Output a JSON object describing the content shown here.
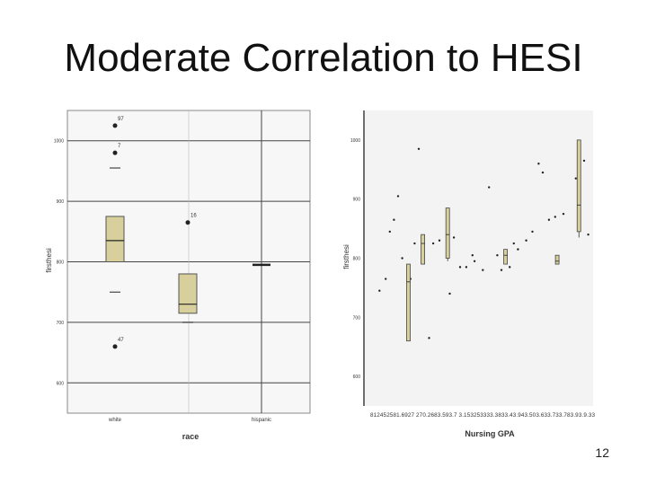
{
  "slide": {
    "title": "Moderate Correlation to HESI",
    "page_number": "12"
  },
  "chart_data": [
    {
      "type": "box",
      "ylabel": "firsthesi",
      "xlabel": "race",
      "categories": [
        "white",
        "",
        "hispanic"
      ],
      "ylim": [
        550,
        1050
      ],
      "yticks": [
        600,
        700,
        800,
        900,
        1000
      ],
      "boxes": [
        {
          "category": "white",
          "whisker_low": 750,
          "q1": 800,
          "median": 835,
          "q3": 875,
          "whisker_high": 955
        },
        {
          "category": "",
          "whisker_low": 700,
          "q1": 715,
          "median": 730,
          "q3": 780,
          "whisker_high": 780
        },
        {
          "category": "hispanic",
          "whisker_low": 795,
          "q1": 795,
          "median": 795,
          "q3": 795,
          "whisker_high": 795
        }
      ],
      "outliers": [
        {
          "category": "white",
          "value": 1025,
          "label": "97"
        },
        {
          "category": "white",
          "value": 980,
          "label": "7"
        },
        {
          "category": "white",
          "value": 660,
          "label": "47"
        },
        {
          "category": "",
          "value": 865,
          "label": "16"
        }
      ],
      "colors": {
        "box_fill": "#d8d09c",
        "box_stroke": "#555555",
        "outlier": "#222222"
      }
    },
    {
      "type": "box",
      "ylabel": "firsthesi",
      "xlabel": "Nursing GPA",
      "ylim": [
        550,
        1050
      ],
      "yticks": [
        600,
        700,
        800,
        900,
        1000
      ],
      "x_tick_text": "812452581.6927 270.2683.593.7 3.153253333.3833.43.943.503.633.733.783.93.9.33",
      "boxes": [
        {
          "x": 0.15,
          "whisker_low": 660,
          "q1": 660,
          "median": 760,
          "q3": 790,
          "whisker_high": 790
        },
        {
          "x": 0.22,
          "whisker_low": 790,
          "q1": 790,
          "median": 825,
          "q3": 840,
          "whisker_high": 840
        },
        {
          "x": 0.34,
          "whisker_low": 795,
          "q1": 800,
          "median": 840,
          "q3": 885,
          "whisker_high": 885
        },
        {
          "x": 0.62,
          "whisker_low": 790,
          "q1": 790,
          "median": 805,
          "q3": 815,
          "whisker_high": 815
        },
        {
          "x": 0.87,
          "whisker_low": 790,
          "q1": 790,
          "median": 795,
          "q3": 805,
          "whisker_high": 805
        },
        {
          "x": 0.975,
          "whisker_low": 835,
          "q1": 845,
          "median": 890,
          "q3": 1000,
          "whisker_high": 1000
        }
      ],
      "points": [
        {
          "x": 0.01,
          "y": 745
        },
        {
          "x": 0.04,
          "y": 765
        },
        {
          "x": 0.06,
          "y": 845
        },
        {
          "x": 0.08,
          "y": 865
        },
        {
          "x": 0.1,
          "y": 905
        },
        {
          "x": 0.12,
          "y": 800
        },
        {
          "x": 0.16,
          "y": 765
        },
        {
          "x": 0.18,
          "y": 825
        },
        {
          "x": 0.2,
          "y": 985
        },
        {
          "x": 0.27,
          "y": 825
        },
        {
          "x": 0.3,
          "y": 830
        },
        {
          "x": 0.37,
          "y": 835
        },
        {
          "x": 0.4,
          "y": 785
        },
        {
          "x": 0.43,
          "y": 785
        },
        {
          "x": 0.46,
          "y": 805
        },
        {
          "x": 0.47,
          "y": 795
        },
        {
          "x": 0.35,
          "y": 740
        },
        {
          "x": 0.25,
          "y": 665
        },
        {
          "x": 0.51,
          "y": 780
        },
        {
          "x": 0.54,
          "y": 920
        },
        {
          "x": 0.58,
          "y": 805
        },
        {
          "x": 0.6,
          "y": 780
        },
        {
          "x": 0.64,
          "y": 785
        },
        {
          "x": 0.66,
          "y": 825
        },
        {
          "x": 0.68,
          "y": 815
        },
        {
          "x": 0.72,
          "y": 830
        },
        {
          "x": 0.75,
          "y": 845
        },
        {
          "x": 0.78,
          "y": 960
        },
        {
          "x": 0.8,
          "y": 945
        },
        {
          "x": 0.83,
          "y": 865
        },
        {
          "x": 0.86,
          "y": 870
        },
        {
          "x": 0.9,
          "y": 875
        },
        {
          "x": 0.96,
          "y": 935
        },
        {
          "x": 1.0,
          "y": 965
        },
        {
          "x": 1.02,
          "y": 840
        }
      ],
      "colors": {
        "box_fill": "#d8d09c",
        "box_stroke": "#444444",
        "point": "#222222"
      }
    }
  ]
}
